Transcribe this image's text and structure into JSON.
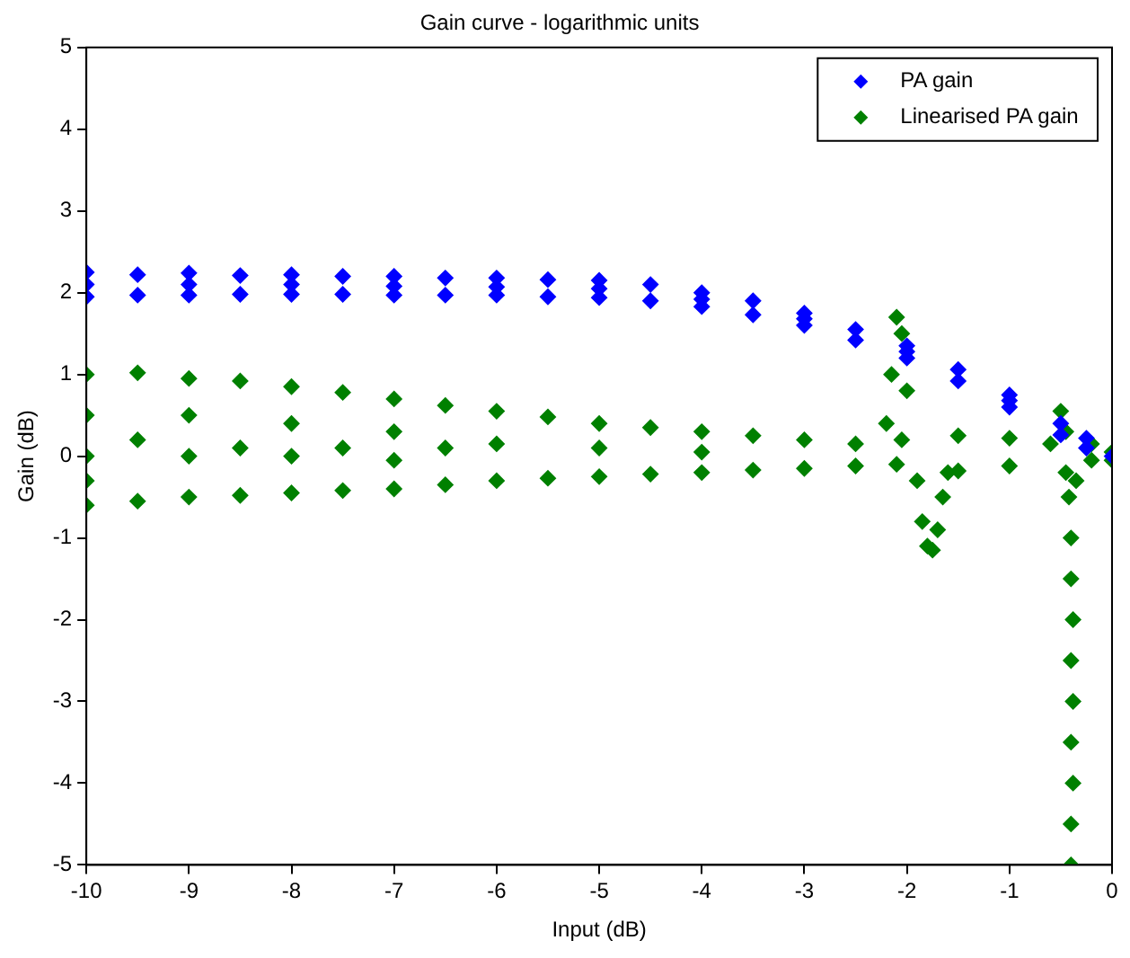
{
  "chart_data": {
    "type": "scatter",
    "title": "Gain curve - logarithmic units",
    "xlabel": "Input (dB)",
    "ylabel": "Gain (dB)",
    "xlim": [
      -10,
      0
    ],
    "ylim": [
      -5,
      5
    ],
    "xticks": [
      -10,
      -9,
      -8,
      -7,
      -6,
      -5,
      -4,
      -3,
      -2,
      -1,
      0
    ],
    "yticks": [
      -5,
      -4,
      -3,
      -2,
      -1,
      0,
      1,
      2,
      3,
      4,
      5
    ],
    "grid": false,
    "legend": "top right",
    "marker": "diamond",
    "series": [
      {
        "name": "PA gain",
        "color": "#0000ff",
        "x": [
          -10,
          -10,
          -10,
          -9.5,
          -9.5,
          -9,
          -9,
          -9,
          -8.5,
          -8.5,
          -8,
          -8,
          -8,
          -7.5,
          -7.5,
          -7,
          -7,
          -7,
          -6.5,
          -6.5,
          -6,
          -6,
          -6,
          -5.5,
          -5.5,
          -5,
          -5,
          -5,
          -4.5,
          -4.5,
          -4,
          -4,
          -4,
          -3.5,
          -3.5,
          -3,
          -3,
          -3,
          -2.5,
          -2.5,
          -2,
          -2,
          -2,
          -1.5,
          -1.5,
          -1,
          -1,
          -1,
          -0.5,
          -0.5,
          -0.25,
          -0.25,
          0
        ],
        "values": [
          2.25,
          2.1,
          1.95,
          2.22,
          1.97,
          2.24,
          2.1,
          1.97,
          2.21,
          1.98,
          2.22,
          2.1,
          1.98,
          2.2,
          1.98,
          2.2,
          2.08,
          1.97,
          2.18,
          1.97,
          2.18,
          2.07,
          1.97,
          2.16,
          1.95,
          2.15,
          2.05,
          1.94,
          2.1,
          1.9,
          2.0,
          1.92,
          1.83,
          1.9,
          1.73,
          1.75,
          1.68,
          1.6,
          1.55,
          1.42,
          1.35,
          1.28,
          1.2,
          1.06,
          0.92,
          0.75,
          0.68,
          0.6,
          0.4,
          0.26,
          0.22,
          0.1,
          0.0
        ]
      },
      {
        "name": "Linearised PA gain",
        "color": "#008000",
        "x": [
          -10,
          -10,
          -10,
          -10,
          -10,
          -9.5,
          -9.5,
          -9.5,
          -9,
          -9,
          -9,
          -9,
          -8.5,
          -8.5,
          -8.5,
          -8,
          -8,
          -8,
          -8,
          -7.5,
          -7.5,
          -7.5,
          -7,
          -7,
          -7,
          -7,
          -6.5,
          -6.5,
          -6.5,
          -6,
          -6,
          -6,
          -5.5,
          -5.5,
          -5,
          -5,
          -5,
          -4.5,
          -4.5,
          -4,
          -4,
          -4,
          -3.5,
          -3.5,
          -3,
          -3,
          -2.5,
          -2.5,
          -2.2,
          -2.15,
          -2.1,
          -2.05,
          -2.0,
          -2.05,
          -2.1,
          -1.9,
          -1.85,
          -1.8,
          -1.75,
          -1.7,
          -1.65,
          -1.6,
          -1.5,
          -1.5,
          -1,
          -1,
          -0.6,
          -0.5,
          -0.45,
          -0.45,
          -0.42,
          -0.4,
          -0.4,
          -0.38,
          -0.4,
          -0.38,
          -0.4,
          -0.38,
          -0.4,
          -0.4,
          -0.35,
          -0.2,
          -0.2,
          0,
          0
        ],
        "values": [
          1.0,
          0.5,
          0.0,
          -0.3,
          -0.6,
          1.02,
          0.2,
          -0.55,
          0.95,
          0.5,
          0.0,
          -0.5,
          0.92,
          0.1,
          -0.48,
          0.85,
          0.4,
          0.0,
          -0.45,
          0.78,
          0.1,
          -0.42,
          0.7,
          0.3,
          -0.05,
          -0.4,
          0.62,
          0.1,
          -0.35,
          0.55,
          0.15,
          -0.3,
          0.48,
          -0.27,
          0.4,
          0.1,
          -0.25,
          0.35,
          -0.22,
          0.3,
          0.05,
          -0.2,
          0.25,
          -0.17,
          0.2,
          -0.15,
          0.15,
          -0.12,
          0.4,
          1.0,
          1.7,
          1.5,
          0.8,
          0.2,
          -0.1,
          -0.3,
          -0.8,
          -1.1,
          -1.15,
          -0.9,
          -0.5,
          -0.2,
          0.25,
          -0.18,
          0.22,
          -0.12,
          0.15,
          0.55,
          0.3,
          -0.2,
          -0.5,
          -1.0,
          -1.5,
          -2.0,
          -2.5,
          -3.0,
          -3.5,
          -4.0,
          -4.5,
          -5.0,
          -0.3,
          0.15,
          -0.05,
          0.05,
          -0.05
        ]
      }
    ]
  }
}
